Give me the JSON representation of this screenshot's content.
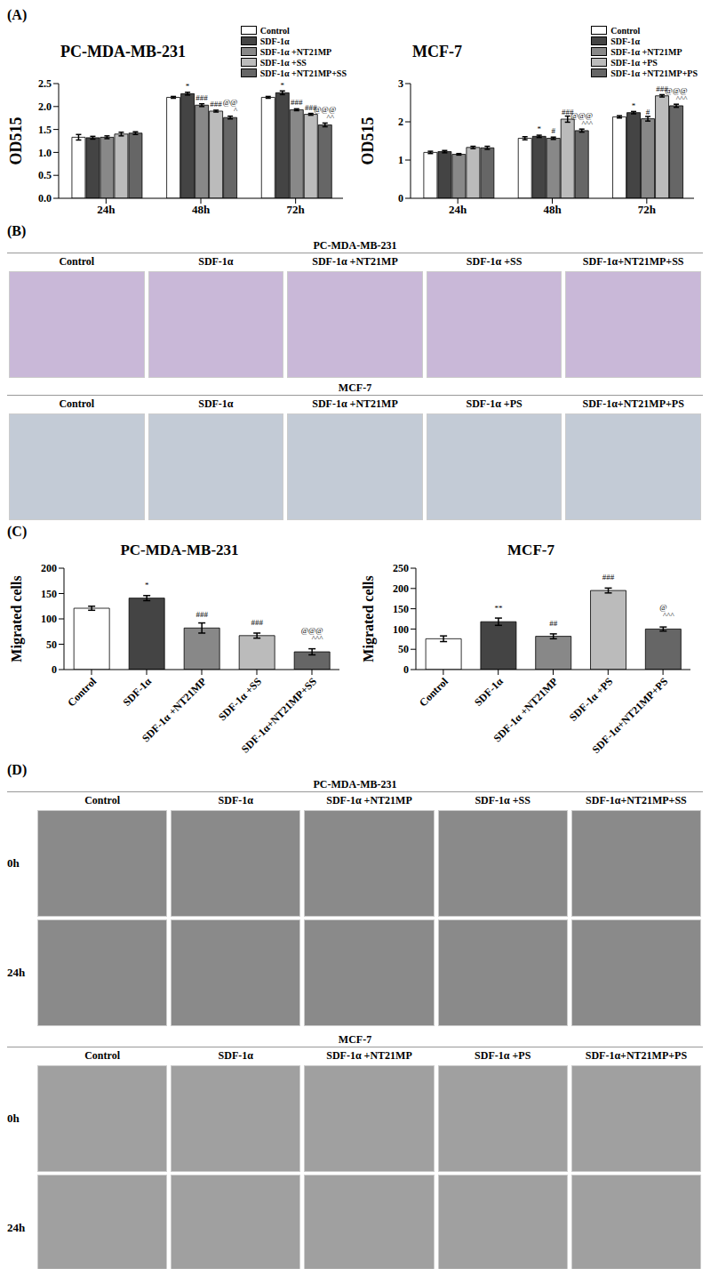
{
  "panel_labels": [
    "(A)",
    "(B)",
    "(C)",
    "(D)"
  ],
  "chart_data": [
    {
      "type": "bar",
      "title": "PC-MDA-MB-231",
      "y_label": "OD515",
      "categories": [
        "24h",
        "48h",
        "72h"
      ],
      "ylim": [
        0,
        2.5
      ],
      "yticks": [
        {
          "value": 0,
          "label": "0.0"
        },
        {
          "value": 0.5,
          "label": "0.5"
        },
        {
          "value": 1,
          "label": "1.0"
        },
        {
          "value": 1.5,
          "label": "1.5"
        },
        {
          "value": 2,
          "label": "2.0"
        },
        {
          "value": 2.5,
          "label": "2.5"
        }
      ],
      "legend": "top-right",
      "series": [
        {
          "name": "Control",
          "color": "#ffffff",
          "values": [
            1.33,
            2.2,
            2.2
          ],
          "errors": [
            0.06,
            0.02,
            0.02
          ],
          "annotations": [
            null,
            null,
            null
          ]
        },
        {
          "name": "SDF-1α",
          "color": "#444444",
          "values": [
            1.32,
            2.28,
            2.3
          ],
          "errors": [
            0.03,
            0.03,
            0.04
          ],
          "annotations": [
            null,
            "*",
            "*"
          ]
        },
        {
          "name": "SDF-1α +NT21MP",
          "color": "#888888",
          "values": [
            1.33,
            2.03,
            1.93
          ],
          "errors": [
            0.03,
            0.03,
            0.02
          ],
          "annotations": [
            null,
            "###",
            "###"
          ]
        },
        {
          "name": "SDF-1α +SS",
          "color": "#bbbbbb",
          "values": [
            1.4,
            1.9,
            1.83
          ],
          "errors": [
            0.04,
            0.02,
            0.02
          ],
          "annotations": [
            null,
            "###",
            "###"
          ]
        },
        {
          "name": "SDF-1α +NT21MP+SS",
          "color": "#666666",
          "values": [
            1.42,
            1.76,
            1.6
          ],
          "errors": [
            0.03,
            0.03,
            0.04
          ],
          "annotations": [
            null,
            "@@ ^",
            "@@@ ^^"
          ]
        }
      ]
    },
    {
      "type": "bar",
      "title": "MCF-7",
      "y_label": "OD515",
      "categories": [
        "24h",
        "48h",
        "72h"
      ],
      "ylim": [
        0,
        3
      ],
      "yticks": [
        0,
        1,
        2,
        3
      ],
      "legend": "top-right",
      "series": [
        {
          "name": "Control",
          "color": "#ffffff",
          "values": [
            1.2,
            1.57,
            2.13
          ],
          "errors": [
            0.03,
            0.04,
            0.03
          ],
          "annotations": [
            null,
            null,
            null
          ]
        },
        {
          "name": "SDF-1α",
          "color": "#444444",
          "values": [
            1.22,
            1.62,
            2.24
          ],
          "errors": [
            0.03,
            0.03,
            0.03
          ],
          "annotations": [
            null,
            "*",
            "*"
          ]
        },
        {
          "name": "SDF-1α +NT21MP",
          "color": "#888888",
          "values": [
            1.15,
            1.57,
            2.08
          ],
          "errors": [
            0.02,
            0.03,
            0.06
          ],
          "annotations": [
            null,
            "#",
            "#"
          ]
        },
        {
          "name": "SDF-1α +PS",
          "color": "#bbbbbb",
          "values": [
            1.33,
            2.07,
            2.68
          ],
          "errors": [
            0.03,
            0.08,
            0.03
          ],
          "annotations": [
            null,
            "###",
            "###"
          ]
        },
        {
          "name": "SDF-1α +NT21MP+PS",
          "color": "#666666",
          "values": [
            1.32,
            1.77,
            2.42
          ],
          "errors": [
            0.04,
            0.04,
            0.04
          ],
          "annotations": [
            null,
            "@@@ ^^^",
            "@@@ ^^^"
          ]
        }
      ]
    },
    {
      "type": "bar",
      "title": "PC-MDA-MB-231",
      "y_label": "Migrated cells",
      "categories": [
        "Control",
        "SDF-1α",
        "SDF-1α +NT21MP",
        "SDF-1α +SS",
        "SDF-1α+NT21MP+SS"
      ],
      "ylim": [
        0,
        200
      ],
      "yticks": [
        0,
        50,
        100,
        150,
        200
      ],
      "values": [
        121,
        141,
        82,
        67,
        35
      ],
      "errors": [
        4,
        5,
        10,
        5,
        6
      ],
      "annotations": [
        null,
        "*",
        "###",
        "###",
        "@@@ ^^^"
      ],
      "colors": [
        "#ffffff",
        "#444444",
        "#888888",
        "#bbbbbb",
        "#666666"
      ]
    },
    {
      "type": "bar",
      "title": "MCF-7",
      "y_label": "Migrated cells",
      "categories": [
        "Control",
        "SDF-1α",
        "SDF-1α +NT21MP",
        "SDF-1α +PS",
        "SDF-1α+NT21MP+PS"
      ],
      "ylim": [
        0,
        250
      ],
      "yticks": [
        0,
        50,
        100,
        150,
        200,
        250
      ],
      "values": [
        76,
        118,
        82,
        195,
        100
      ],
      "errors": [
        7,
        9,
        6,
        6,
        5
      ],
      "annotations": [
        null,
        "**",
        "##",
        "###",
        "@ ^^^"
      ],
      "colors": [
        "#ffffff",
        "#444444",
        "#888888",
        "#bbbbbb",
        "#666666"
      ]
    }
  ],
  "image_panels": [
    {
      "sections": [
        {
          "title": "PC-MDA-MB-231",
          "columns": [
            "Control",
            "SDF-1α",
            "SDF-1α +NT21MP",
            "SDF-1α +SS",
            "SDF-1α+NT21MP+SS"
          ]
        },
        {
          "title": "MCF-7",
          "columns": [
            "Control",
            "SDF-1α",
            "SDF-1α +NT21MP",
            "SDF-1α +PS",
            "SDF-1α+NT21MP+PS"
          ]
        }
      ]
    },
    {
      "sections": [
        {
          "title": "PC-MDA-MB-231",
          "columns": [
            "Control",
            "SDF-1α",
            "SDF-1α +NT21MP",
            "SDF-1α +SS",
            "SDF-1α+NT21MP+SS"
          ],
          "rows": [
            "0h",
            "24h"
          ]
        },
        {
          "title": "MCF-7",
          "columns": [
            "Control",
            "SDF-1α",
            "SDF-1α +NT21MP",
            "SDF-1α +PS",
            "SDF-1α+NT21MP+PS"
          ],
          "rows": [
            "0h",
            "24h"
          ]
        }
      ]
    }
  ]
}
